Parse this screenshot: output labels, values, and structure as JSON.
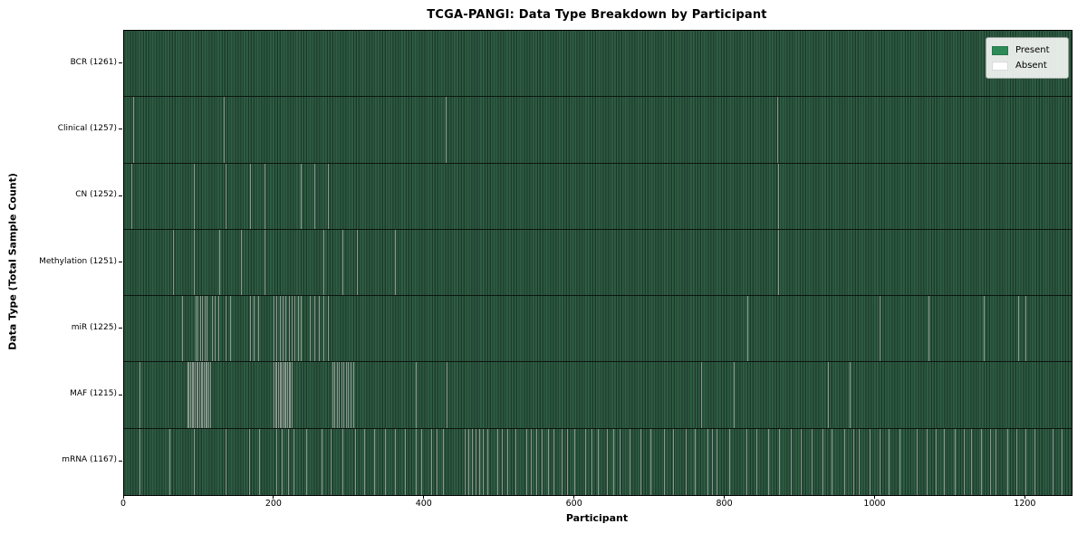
{
  "window": {
    "title": "TCGA-PANGI: Data Type Breakdown by Participant"
  },
  "colors": {
    "present": "#2e8b57",
    "absent": "#ffffff",
    "plot_green_light": "#305f45",
    "plot_green_mid": "#27503b",
    "plot_green_dark": "#1b3929",
    "absent_stripe": "#8e978f",
    "row_separator": "#0c150f",
    "axis": "#000000",
    "legend_bg": "#f2f4f2"
  },
  "chart_data": {
    "type": "heatmap",
    "title": "TCGA-PANGI: Data Type Breakdown by Participant",
    "xlabel": "Participant",
    "ylabel": "Data Type (Total Sample Count)",
    "x_range": [
      0,
      1261
    ],
    "x_ticks": [
      0,
      200,
      400,
      600,
      800,
      1000,
      1200
    ],
    "n_participants": 1261,
    "grid": false,
    "legend_position": "upper right",
    "legend": [
      {
        "label": "Present",
        "color": "#2e8b57"
      },
      {
        "label": "Absent",
        "color": "#ffffff"
      }
    ],
    "rows": [
      {
        "label": "BCR (1261)",
        "name": "BCR",
        "present_count": 1261,
        "absent_count": 0,
        "absent_indices": []
      },
      {
        "label": "Clinical (1257)",
        "name": "Clinical",
        "present_count": 1257,
        "absent_count": 4,
        "absent_indices": [
          12,
          133,
          428,
          869
        ]
      },
      {
        "label": "CN (1252)",
        "name": "CN",
        "present_count": 1252,
        "absent_count": 9,
        "absent_indices": [
          10,
          93,
          135,
          168,
          187,
          235,
          253,
          271,
          871
        ]
      },
      {
        "label": "Methylation (1251)",
        "name": "Methylation",
        "present_count": 1251,
        "absent_count": 10,
        "absent_indices": [
          65,
          93,
          126,
          156,
          187,
          265,
          290,
          310,
          360,
          871
        ]
      },
      {
        "label": "miR (1225)",
        "name": "miR",
        "present_count": 1225,
        "absent_count": 36,
        "absent_indices": [
          77,
          95,
          98,
          101,
          104,
          107,
          110,
          117,
          121,
          125,
          135,
          141,
          168,
          172,
          178,
          199,
          203,
          207,
          211,
          215,
          219,
          223,
          227,
          231,
          235,
          247,
          253,
          259,
          265,
          271,
          830,
          1005,
          1071,
          1144,
          1190,
          1199
        ]
      },
      {
        "label": "MAF (1215)",
        "name": "MAF",
        "present_count": 1215,
        "absent_count": 46,
        "absent_indices": [
          20,
          84,
          86,
          88,
          90,
          92,
          94,
          96,
          98,
          100,
          102,
          104,
          106,
          108,
          110,
          112,
          114,
          199,
          201,
          203,
          205,
          207,
          209,
          211,
          213,
          215,
          217,
          219,
          221,
          223,
          277,
          280,
          283,
          286,
          289,
          292,
          295,
          298,
          301,
          305,
          388,
          429,
          768,
          811,
          937,
          966
        ]
      },
      {
        "label": "mRNA (1167)",
        "name": "mRNA",
        "present_count": 1167,
        "absent_count": 94,
        "absent_indices": [
          21,
          60,
          93,
          135,
          166,
          180,
          202,
          210,
          218,
          226,
          242,
          263,
          275,
          291,
          307,
          319,
          333,
          347,
          360,
          374,
          388,
          396,
          409,
          416,
          424,
          453,
          458,
          463,
          468,
          473,
          477,
          484,
          497,
          503,
          510,
          521,
          535,
          541,
          548,
          556,
          564,
          572,
          582,
          590,
          599,
          614,
          622,
          630,
          642,
          651,
          660,
          673,
          687,
          700,
          719,
          731,
          748,
          760,
          776,
          782,
          788,
          805,
          828,
          842,
          857,
          872,
          887,
          901,
          915,
          929,
          941,
          958,
          971,
          978,
          992,
          1005,
          1018,
          1032,
          1055,
          1068,
          1080,
          1091,
          1105,
          1118,
          1127,
          1140,
          1152,
          1160,
          1175,
          1188,
          1199,
          1212,
          1236,
          1248
        ]
      }
    ]
  }
}
